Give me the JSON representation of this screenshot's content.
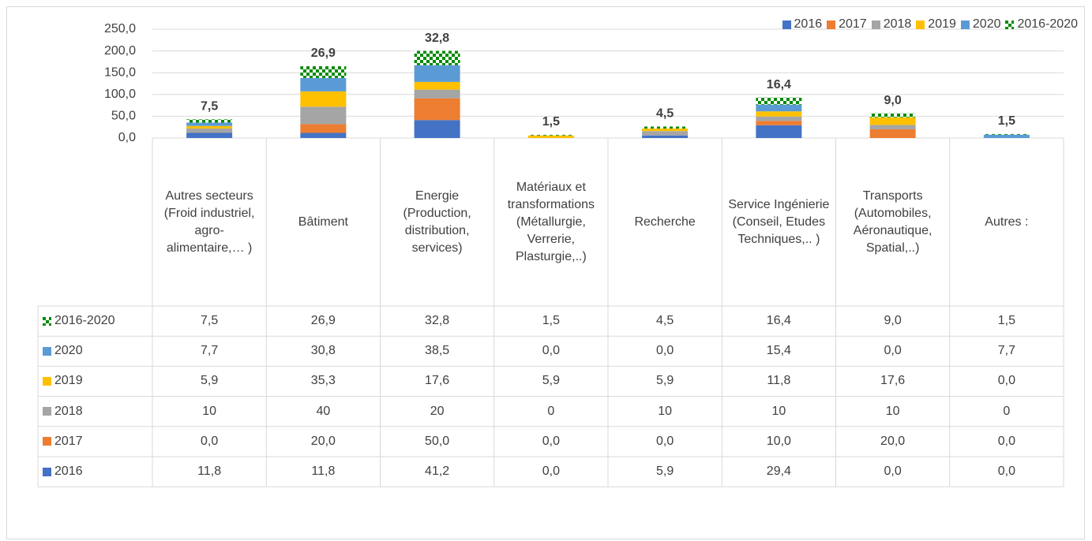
{
  "chart_data": {
    "type": "stacked_bar",
    "categories": [
      "Autres secteurs (Froid industriel, agro-alimentaire,… )",
      "Bâtiment",
      "Energie (Production, distribution, services)",
      "Matériaux et transformations (Métallurgie, Verrerie, Plasturgie,..)",
      "Recherche",
      "Service Ingénierie (Conseil, Etudes Techniques,.. )",
      "Transports (Automobiles, Aéronautique, Spatial,..)",
      "Autres :"
    ],
    "series": [
      {
        "name": "2016",
        "color": "#4472c4",
        "values": [
          11.8,
          11.8,
          41.2,
          0,
          5.9,
          29.4,
          0,
          0
        ],
        "value_labels": [
          "11,8",
          "11,8",
          "41,2",
          "0,0",
          "5,9",
          "29,4",
          "0,0",
          "0,0"
        ]
      },
      {
        "name": "2017",
        "color": "#ed7d31",
        "values": [
          0,
          20,
          50,
          0,
          0,
          10,
          20,
          0
        ],
        "value_labels": [
          "0,0",
          "20,0",
          "50,0",
          "0,0",
          "0,0",
          "10,0",
          "20,0",
          "0,0"
        ]
      },
      {
        "name": "2018",
        "color": "#a5a5a5",
        "values": [
          10,
          40,
          20,
          0,
          10,
          10,
          10,
          0
        ]
      },
      {
        "name": "2019",
        "color": "#ffc000",
        "values": [
          5.9,
          35.3,
          17.6,
          5.9,
          5.9,
          11.8,
          17.6,
          0
        ],
        "value_labels": [
          "5,9",
          "35,3",
          "17,6",
          "5,9",
          "5,9",
          "11,8",
          "17,6",
          "0,0"
        ]
      },
      {
        "name": "2020",
        "color": "#5b9bd5",
        "values": [
          7.7,
          30.8,
          38.5,
          0,
          0,
          15.4,
          0,
          7.7
        ],
        "value_labels": [
          "7,7",
          "30,8",
          "38,5",
          "0,0",
          "0,0",
          "15,4",
          "0,0",
          "7,7"
        ]
      },
      {
        "name": "2016-2020",
        "color": "#008a00",
        "pattern": "checker",
        "values": [
          7.5,
          26.9,
          32.8,
          1.5,
          4.5,
          16.4,
          9.0,
          1.5
        ],
        "value_labels": [
          "7,5",
          "26,9",
          "32,8",
          "1,5",
          "4,5",
          "16,4",
          "9,0",
          "1,5"
        ],
        "show_data_labels": true
      }
    ],
    "ylim": [
      0,
      250
    ],
    "yticks": [
      {
        "value": 0,
        "label": "0,0"
      },
      {
        "value": 50,
        "label": "50,0"
      },
      {
        "value": 100,
        "label": "100,0"
      },
      {
        "value": 150,
        "label": "150,0"
      },
      {
        "value": 200,
        "label": "200,0"
      },
      {
        "value": 250,
        "label": "250,0"
      }
    ],
    "grid": true,
    "legend": "top-right",
    "data_table": true
  }
}
